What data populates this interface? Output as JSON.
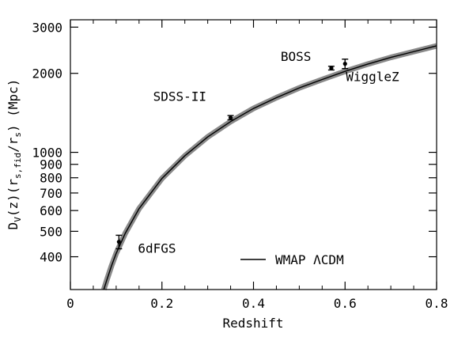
{
  "chart_data": {
    "type": "scatter",
    "xlabel": "Redshift",
    "ylabel_parts": [
      "D",
      "V",
      "(z)(r",
      "s,fid",
      "/r",
      "s",
      ")  (Mpc)"
    ],
    "xlim": [
      0,
      0.8
    ],
    "ylim": [
      300,
      3200
    ],
    "y_scale": "log",
    "x_ticks": [
      {
        "value": 0,
        "label": "0"
      },
      {
        "value": 0.2,
        "label": "0.2"
      },
      {
        "value": 0.4,
        "label": "0.4"
      },
      {
        "value": 0.6,
        "label": "0.6"
      },
      {
        "value": 0.8,
        "label": "0.8"
      }
    ],
    "y_ticks": [
      {
        "value": 400,
        "label": "400"
      },
      {
        "value": 500,
        "label": "500"
      },
      {
        "value": 600,
        "label": "600"
      },
      {
        "value": 700,
        "label": "700"
      },
      {
        "value": 800,
        "label": "800"
      },
      {
        "value": 900,
        "label": "900"
      },
      {
        "value": 1000,
        "label": "1000"
      },
      {
        "value": 2000,
        "label": "2000"
      },
      {
        "value": 3000,
        "label": "3000"
      }
    ],
    "points": [
      {
        "label": "6dFGS",
        "x": 0.106,
        "y": 456,
        "err": 27
      },
      {
        "label": "SDSS-II",
        "x": 0.35,
        "y": 1356,
        "err": 25
      },
      {
        "label": "BOSS",
        "x": 0.57,
        "y": 2094,
        "err": 34
      },
      {
        "label": "WiggleZ",
        "x": 0.6,
        "y": 2175,
        "err": 90
      }
    ],
    "model_curve": {
      "legend": "WMAP ΛCDM",
      "x": [
        0.073,
        0.08,
        0.09,
        0.1,
        0.12,
        0.15,
        0.2,
        0.25,
        0.3,
        0.35,
        0.4,
        0.45,
        0.5,
        0.55,
        0.6,
        0.65,
        0.7,
        0.75,
        0.8
      ],
      "y": [
        300,
        328,
        370,
        412,
        492,
        610,
        795,
        970,
        1145,
        1310,
        1470,
        1615,
        1760,
        1895,
        2035,
        2170,
        2300,
        2420,
        2545
      ]
    }
  }
}
